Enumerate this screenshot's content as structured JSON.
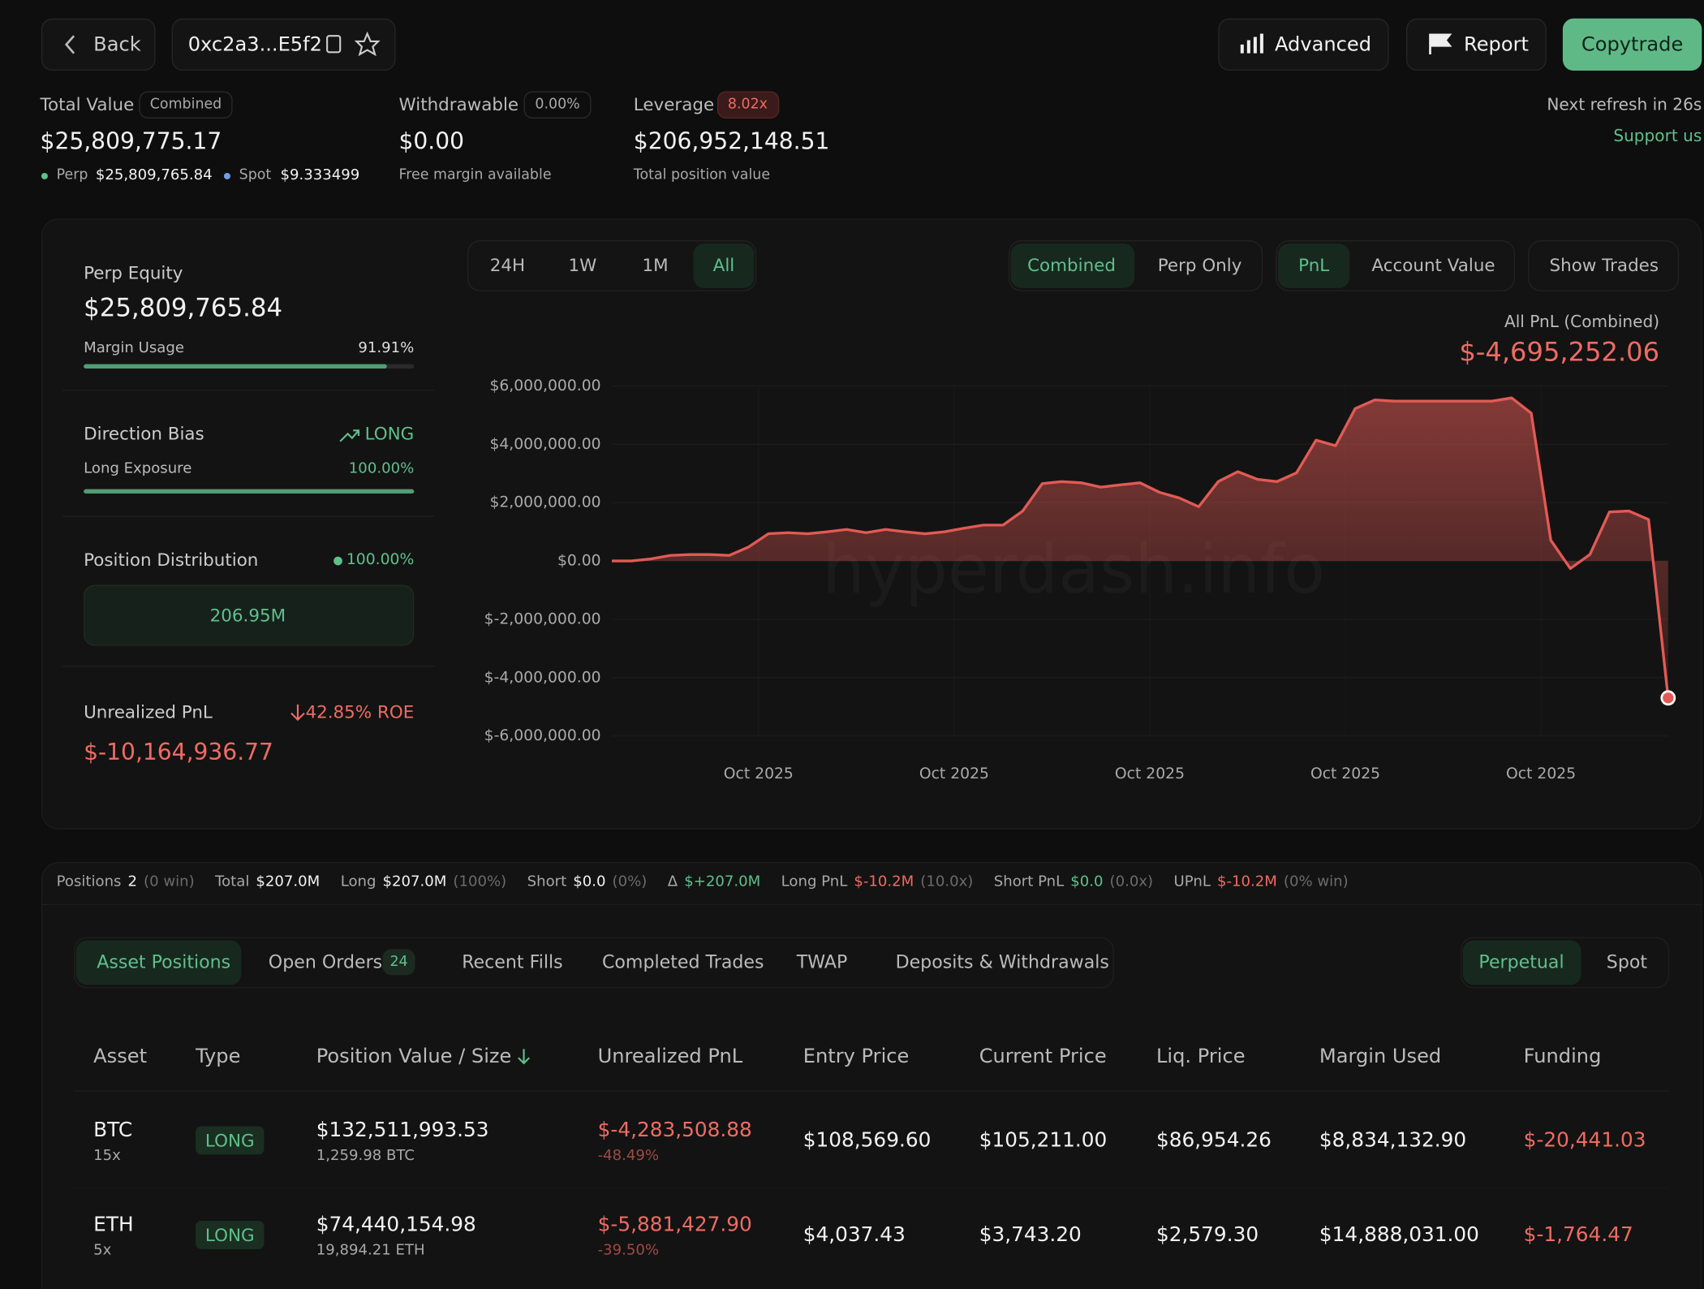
{
  "header": {
    "back": "Back",
    "address": "0xc2a3...E5f2",
    "actions": [
      "Advanced",
      "Report",
      "Copytrade"
    ]
  },
  "summary": {
    "total_value": {
      "label": "Total Value",
      "badge": "Combined",
      "value": "$25,809,775.17",
      "perp_label": "Perp",
      "perp": "$25,809,765.84",
      "spot_label": "Spot",
      "spot": "$9.333499"
    },
    "withdrawable": {
      "label": "Withdrawable",
      "badge": "0.00%",
      "value": "$0.00",
      "note": "Free margin available"
    },
    "leverage": {
      "label": "Leverage",
      "badge": "8.02x",
      "value": "$206,952,148.51",
      "note": "Total position value"
    },
    "refresh": "Next refresh in 26s",
    "support": "Support us"
  },
  "side": {
    "perp_equity": {
      "label": "Perp Equity",
      "value": "$25,809,765.84"
    },
    "margin_usage": {
      "label": "Margin Usage",
      "value": 91.91,
      "value_label": "91.91%"
    },
    "direction_bias": {
      "label": "Direction Bias",
      "value": "LONG"
    },
    "long_exposure": {
      "label": "Long Exposure",
      "value": 100,
      "value_label": "100.00%"
    },
    "position_distribution": {
      "label": "Position Distribution",
      "value": 100,
      "value_label": "100.00%",
      "block": "206.95M"
    },
    "unrealized_pnl": {
      "label": "Unrealized PnL",
      "roe": "42.85% ROE",
      "value": "$-10,164,936.77"
    }
  },
  "chart_controls": {
    "ranges": [
      "24H",
      "1W",
      "1M",
      "All"
    ],
    "active_range": 3,
    "modes": [
      "Combined",
      "Perp Only"
    ],
    "active_mode": 0,
    "metrics": [
      "PnL",
      "Account Value"
    ],
    "active_metric": 0,
    "show_trades": "Show Trades"
  },
  "chart_data": {
    "type": "area",
    "title": "All PnL (Combined)",
    "headline": "$-4,695,252.06",
    "watermark": "hyperdash.info",
    "color": "#e25a55",
    "x": [
      0,
      1,
      2,
      3,
      4,
      5,
      6,
      7,
      8,
      9,
      10,
      11,
      12,
      13,
      14,
      15,
      16,
      17,
      18,
      19,
      20,
      21,
      22,
      23,
      24,
      25,
      26,
      27,
      28,
      29,
      30,
      31,
      32,
      33,
      34,
      35,
      36,
      37,
      38,
      39,
      40,
      41,
      42,
      43,
      44,
      45,
      46,
      47,
      48,
      49,
      50,
      51,
      52,
      53,
      54
    ],
    "values": [
      0,
      0,
      70000,
      190000,
      220000,
      220000,
      190000,
      480000,
      930000,
      970000,
      930000,
      1000000,
      1080000,
      970000,
      1080000,
      1000000,
      930000,
      1000000,
      1120000,
      1230000,
      1230000,
      1710000,
      2650000,
      2720000,
      2680000,
      2530000,
      2610000,
      2680000,
      2350000,
      2160000,
      1860000,
      2720000,
      3060000,
      2800000,
      2720000,
      3020000,
      4140000,
      3950000,
      5220000,
      5520000,
      5480000,
      5480000,
      5480000,
      5480000,
      5480000,
      5480000,
      5590000,
      5070000,
      710000,
      -260000,
      220000,
      1680000,
      1710000,
      1420000,
      -4695252.06
    ],
    "xlim": [
      0,
      54
    ],
    "xticks": [
      {
        "value": 7.5,
        "label": "Oct 2025"
      },
      {
        "value": 17.5,
        "label": "Oct 2025"
      },
      {
        "value": 27.5,
        "label": "Oct 2025"
      },
      {
        "value": 37.5,
        "label": "Oct 2025"
      },
      {
        "value": 47.5,
        "label": "Oct 2025"
      }
    ],
    "ylim": [
      -6000000,
      6000000
    ],
    "yticks": [
      {
        "value": 6000000,
        "label": "$6,000,000.00"
      },
      {
        "value": 4000000,
        "label": "$4,000,000.00"
      },
      {
        "value": 2000000,
        "label": "$2,000,000.00"
      },
      {
        "value": 0,
        "label": "$0.00"
      },
      {
        "value": -2000000,
        "label": "$-2,000,000.00"
      },
      {
        "value": -4000000,
        "label": "$-4,000,000.00"
      },
      {
        "value": -6000000,
        "label": "$-6,000,000.00"
      }
    ],
    "grid": true
  },
  "positions_summary": [
    {
      "label": "Positions",
      "value": "2",
      "note": "(0 win)",
      "color": "#f2f2f2"
    },
    {
      "label": "Total",
      "value": "$207.0M",
      "color": "#f2f2f2"
    },
    {
      "label": "Long",
      "value": "$207.0M",
      "note": "(100%)",
      "color": "#f2f2f2"
    },
    {
      "label": "Short",
      "value": "$0.0",
      "note": "(0%)",
      "color": "#f2f2f2"
    },
    {
      "label": "Δ",
      "value": "$+207.0M",
      "color": "#5fc08a"
    },
    {
      "label": "Long PnL",
      "value": "$-10.2M",
      "note": "(10.0x)",
      "color": "#ef6b63"
    },
    {
      "label": "Short PnL",
      "value": "$0.0",
      "note": "(0.0x)",
      "color": "#5fc08a"
    },
    {
      "label": "UPnL",
      "value": "$-10.2M",
      "note": "(0% win)",
      "color": "#ef6b63"
    }
  ],
  "tabs": {
    "items": [
      "Asset Positions",
      "Open Orders",
      "Recent Fills",
      "Completed Trades",
      "TWAP",
      "Deposits & Withdrawals"
    ],
    "active": 0,
    "open_orders_count": "24",
    "markets": [
      "Perpetual",
      "Spot"
    ],
    "active_market": 0
  },
  "table": {
    "headers": [
      "Asset",
      "Type",
      "Position Value / Size",
      "Unrealized PnL",
      "Entry Price",
      "Current Price",
      "Liq. Price",
      "Margin Used",
      "Funding"
    ],
    "rows": [
      {
        "asset": "BTC",
        "leverage": "15x",
        "type": "LONG",
        "position_value": "$132,511,993.53",
        "size": "1,259.98 BTC",
        "upnl": "$-4,283,508.88",
        "upnl_pct": "-48.49%",
        "entry": "$108,569.60",
        "current": "$105,211.00",
        "liq": "$86,954.26",
        "margin": "$8,834,132.90",
        "funding": "$-20,441.03"
      },
      {
        "asset": "ETH",
        "leverage": "5x",
        "type": "LONG",
        "position_value": "$74,440,154.98",
        "size": "19,894.21 ETH",
        "upnl": "$-5,881,427.90",
        "upnl_pct": "-39.50%",
        "entry": "$4,037.43",
        "current": "$3,743.20",
        "liq": "$2,579.30",
        "margin": "$14,888,031.00",
        "funding": "$-1,764.47"
      }
    ]
  }
}
